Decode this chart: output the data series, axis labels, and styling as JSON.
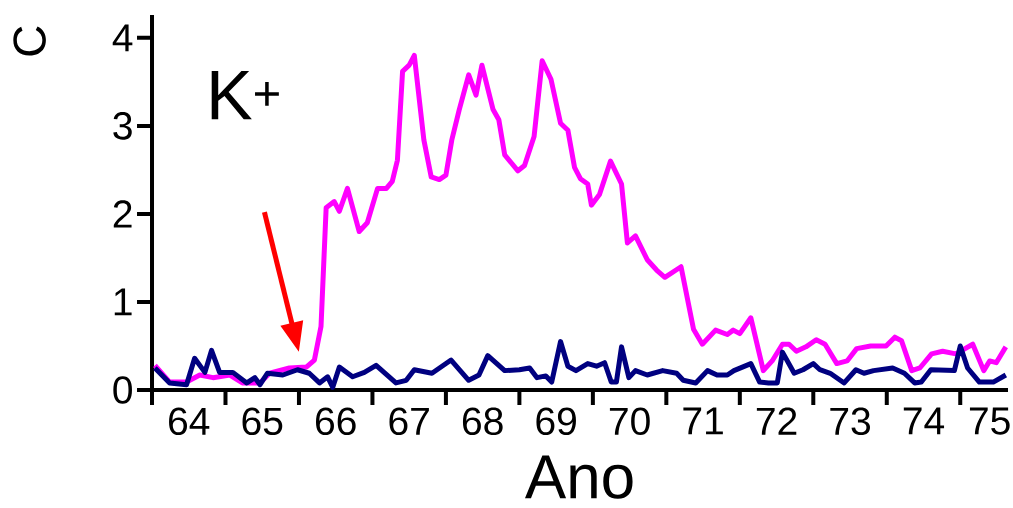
{
  "chart_data": {
    "type": "line",
    "xlabel": "Ano",
    "ylabel": "C",
    "annotations": [
      "K$^{+}$"
    ],
    "xlim": [
      64,
      75.65
    ],
    "ylim": [
      0,
      4.26
    ],
    "xticks": [
      {
        "value": 64,
        "label": null
      },
      {
        "value": 65,
        "label": null
      },
      {
        "value": 66,
        "label": null
      },
      {
        "value": 67,
        "label": null
      },
      {
        "value": 68,
        "label": null
      },
      {
        "value": 69,
        "label": null
      },
      {
        "value": 70,
        "label": null
      },
      {
        "value": 71,
        "label": null
      },
      {
        "value": 72,
        "label": null
      },
      {
        "value": 73,
        "label": null
      },
      {
        "value": 74,
        "label": null
      },
      {
        "value": 75,
        "label": null
      },
      {
        "value": 64.5,
        "label": "64"
      },
      {
        "value": 65.5,
        "label": "65"
      },
      {
        "value": 66.5,
        "label": "66"
      },
      {
        "value": 67.5,
        "label": "67"
      },
      {
        "value": 68.5,
        "label": "68"
      },
      {
        "value": 69.5,
        "label": "69"
      },
      {
        "value": 70.5,
        "label": "70"
      },
      {
        "value": 71.5,
        "label": "71"
      },
      {
        "value": 72.5,
        "label": "72"
      },
      {
        "value": 73.5,
        "label": "73"
      },
      {
        "value": 74.5,
        "label": "74"
      },
      {
        "value": 75.4,
        "label": "75"
      }
    ],
    "yticks": [
      0,
      1,
      2,
      3,
      4
    ],
    "grid": false,
    "line_style": "solid",
    "series": [
      {
        "color": "#ff00ff",
        "x": [
          64.04,
          64.24,
          64.47,
          64.65,
          64.83,
          65.06,
          65.23,
          65.47,
          65.6,
          65.87,
          66.1,
          66.21,
          66.3,
          66.37,
          66.48,
          66.55,
          66.66,
          66.82,
          66.93,
          67.07,
          67.19,
          67.27,
          67.34,
          67.41,
          67.5,
          67.57,
          67.7,
          67.8,
          67.91,
          68.0,
          68.08,
          68.18,
          68.31,
          68.41,
          68.49,
          68.64,
          68.72,
          68.8,
          68.98,
          69.07,
          69.2,
          69.31,
          69.43,
          69.56,
          69.66,
          69.75,
          69.83,
          69.93,
          69.98,
          70.09,
          70.24,
          70.39,
          70.47,
          70.58,
          70.74,
          70.87,
          70.98,
          71.2,
          71.37,
          71.49,
          71.67,
          71.83,
          71.91,
          72.0,
          72.15,
          72.32,
          72.44,
          72.58,
          72.67,
          72.77,
          72.9,
          73.04,
          73.16,
          73.32,
          73.46,
          73.59,
          73.78,
          73.99,
          74.11,
          74.2,
          74.34,
          74.45,
          74.61,
          74.76,
          74.94,
          75.17,
          75.32,
          75.4,
          75.49,
          75.62
        ],
        "values": [
          0.28,
          0.09,
          0.09,
          0.17,
          0.14,
          0.17,
          0.08,
          0.08,
          0.19,
          0.25,
          0.26,
          0.34,
          0.72,
          2.07,
          2.14,
          2.03,
          2.29,
          1.8,
          1.9,
          2.29,
          2.29,
          2.37,
          2.61,
          3.62,
          3.69,
          3.8,
          2.84,
          2.42,
          2.39,
          2.44,
          2.84,
          3.18,
          3.58,
          3.35,
          3.69,
          3.19,
          3.07,
          2.67,
          2.49,
          2.55,
          2.88,
          3.74,
          3.53,
          3.03,
          2.95,
          2.53,
          2.4,
          2.34,
          2.1,
          2.22,
          2.6,
          2.34,
          1.67,
          1.75,
          1.48,
          1.36,
          1.28,
          1.4,
          0.69,
          0.52,
          0.68,
          0.63,
          0.68,
          0.64,
          0.82,
          0.22,
          0.33,
          0.52,
          0.52,
          0.44,
          0.49,
          0.57,
          0.52,
          0.3,
          0.33,
          0.47,
          0.5,
          0.5,
          0.6,
          0.56,
          0.22,
          0.25,
          0.41,
          0.44,
          0.41,
          0.52,
          0.22,
          0.33,
          0.31,
          0.49
        ]
      },
      {
        "color": "#000080",
        "x": [
          64.04,
          64.24,
          64.47,
          64.58,
          64.72,
          64.81,
          64.92,
          65.1,
          65.29,
          65.4,
          65.47,
          65.57,
          65.78,
          65.98,
          66.14,
          66.28,
          66.39,
          66.46,
          66.55,
          66.73,
          66.89,
          67.05,
          67.32,
          67.46,
          67.57,
          67.81,
          68.07,
          68.31,
          68.45,
          68.57,
          68.8,
          69.0,
          69.14,
          69.24,
          69.36,
          69.44,
          69.56,
          69.66,
          69.77,
          69.93,
          70.05,
          70.16,
          70.25,
          70.32,
          70.39,
          70.49,
          70.58,
          70.74,
          70.95,
          71.14,
          71.23,
          71.4,
          71.56,
          71.69,
          71.83,
          71.92,
          72.15,
          72.27,
          72.39,
          72.51,
          72.58,
          72.74,
          72.86,
          73.0,
          73.09,
          73.23,
          73.42,
          73.58,
          73.69,
          73.82,
          74.08,
          74.24,
          74.38,
          74.47,
          74.6,
          74.92,
          75.0,
          75.1,
          75.26,
          75.45,
          75.62
        ],
        "values": [
          0.25,
          0.08,
          0.06,
          0.36,
          0.2,
          0.45,
          0.2,
          0.2,
          0.08,
          0.14,
          0.06,
          0.19,
          0.17,
          0.23,
          0.19,
          0.08,
          0.15,
          0.03,
          0.26,
          0.15,
          0.2,
          0.28,
          0.08,
          0.11,
          0.23,
          0.19,
          0.34,
          0.11,
          0.17,
          0.39,
          0.22,
          0.23,
          0.25,
          0.14,
          0.16,
          0.09,
          0.55,
          0.27,
          0.22,
          0.3,
          0.27,
          0.31,
          0.09,
          0.09,
          0.49,
          0.14,
          0.22,
          0.17,
          0.22,
          0.19,
          0.11,
          0.08,
          0.22,
          0.17,
          0.17,
          0.22,
          0.3,
          0.09,
          0.08,
          0.08,
          0.43,
          0.19,
          0.23,
          0.3,
          0.23,
          0.19,
          0.08,
          0.23,
          0.19,
          0.22,
          0.25,
          0.19,
          0.08,
          0.09,
          0.23,
          0.22,
          0.5,
          0.25,
          0.09,
          0.09,
          0.17
        ]
      }
    ]
  }
}
